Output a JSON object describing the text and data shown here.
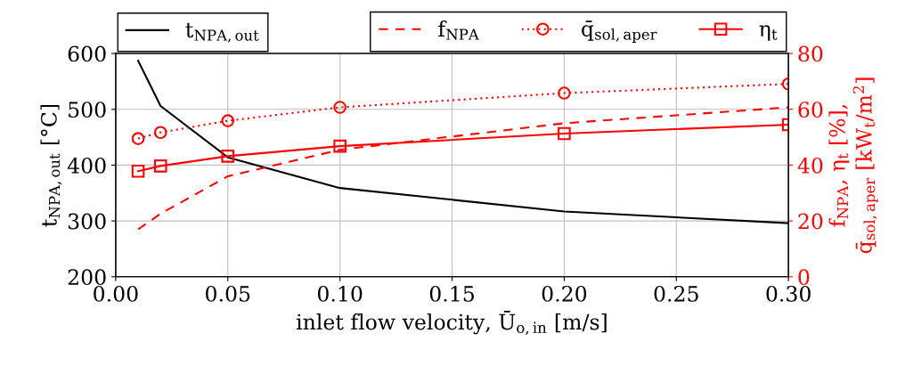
{
  "chart_data": {
    "type": "line",
    "xlabel": "inlet flow velocity, Ū$_{o,in}$ [m/s]",
    "ylabel": "t$_{NPA,out}$ [°C]",
    "y2label": "f$_{NPA}$, η$_{t}$ [%],\nq̄$_{sol,aper}$ [kW$_{t}$/m$^{2}$]",
    "x": [
      0.01,
      0.02,
      0.05,
      0.1,
      0.2,
      0.3
    ],
    "series": [
      {
        "name": "t$_{NPA,out}$",
        "color": "#000000",
        "values": [
          587,
          506,
          414,
          359,
          317,
          296
        ],
        "line_style": "solid",
        "marker": "none"
      },
      {
        "name": "f$_{NPA}$",
        "color": "#ff0000",
        "axis": "y2",
        "values": [
          17,
          22.6,
          36,
          45.5,
          55,
          60.7
        ],
        "line_style": "dashed",
        "marker": "none"
      },
      {
        "name": "q̄$_{sol,aper}$",
        "color": "#ff0000",
        "axis": "y2",
        "values": [
          49.5,
          51.7,
          55.9,
          60.7,
          65.8,
          69.1
        ],
        "line_style": "dotted",
        "marker": "circle"
      },
      {
        "name": "η$_{t}$",
        "color": "#ff0000",
        "axis": "y2",
        "values": [
          37.8,
          39.7,
          43.2,
          46.8,
          51.3,
          54.5
        ],
        "line_style": "solid",
        "marker": "square"
      }
    ],
    "xlim": [
      0,
      0.3
    ],
    "xticks": [
      {
        "value": 0,
        "label": "0.00"
      },
      {
        "value": 0.05,
        "label": "0.05"
      },
      {
        "value": 0.1,
        "label": "0.10"
      },
      {
        "value": 0.15,
        "label": "0.15"
      },
      {
        "value": 0.2,
        "label": "0.20"
      },
      {
        "value": 0.25,
        "label": "0.25"
      },
      {
        "value": 0.3,
        "label": "0.30"
      }
    ],
    "ylim": [
      200,
      600
    ],
    "yticks": [
      200,
      300,
      400,
      500,
      600
    ],
    "y2lim": [
      0,
      80
    ],
    "y2ticks": [
      0,
      20,
      40,
      60,
      80
    ],
    "grid": true,
    "legend": "top"
  }
}
